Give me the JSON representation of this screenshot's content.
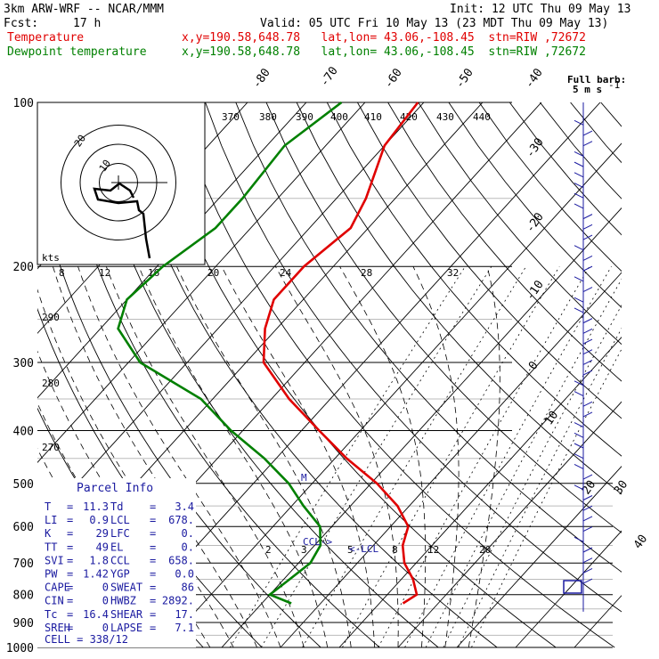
{
  "header": {
    "title": "3km ARW-WRF -- NCAR/MMM",
    "init": "Init: 12 UTC Thu 09 May 13",
    "fcst_label": "Fcst:",
    "fcst_value": "17 h",
    "valid": "Valid: 05 UTC Fri 10 May 13 (23 MDT Thu 09 May 13)",
    "temp_label": "Temperature",
    "dew_label": "Dewpoint temperature",
    "location": "x,y=190.58,648.78   lat,lon= 43.06,-108.45  stn=RIW ,72672",
    "temp_color": "#e00000",
    "dew_color": "#008000"
  },
  "barb_key": {
    "line1": "Full barb:",
    "line2": "5 m s",
    "sup": "-1"
  },
  "hodograph": {
    "units": "kts",
    "ring_labels": [
      "20",
      "10"
    ]
  },
  "parcel_info": {
    "title": "Parcel Info",
    "rows": [
      [
        "T",
        "=",
        "11.3",
        "Td",
        "=",
        "3.4"
      ],
      [
        "LI",
        "=",
        "0.9",
        "LCL",
        "=",
        "678."
      ],
      [
        "K",
        "=",
        "29",
        "LFC",
        "=",
        "0."
      ],
      [
        "TT",
        "=",
        "49",
        "EL",
        "=",
        "0."
      ],
      [
        "SVI",
        "=",
        "1.8",
        "CCL",
        "=",
        "658."
      ],
      [
        "PW",
        "=",
        "1.42",
        "YGP",
        "=",
        "0.0"
      ],
      [
        "CAPE",
        "=",
        "0",
        "SWEAT",
        "=",
        "86"
      ],
      [
        "CIN",
        "=",
        "0",
        "HWBZ",
        "=",
        "2892."
      ],
      [
        "Tc",
        "=",
        "16.4",
        "SHEAR",
        "=",
        "17."
      ],
      [
        "SREH",
        "=",
        "0",
        "LAPSE",
        "=",
        "7.1"
      ]
    ],
    "cell": "CELL = 338/12"
  },
  "annotations": {
    "ccl": "CCL->",
    "lcl": "<-LCL"
  },
  "chart_data": {
    "type": "skew-t",
    "y_axis": "pressure (hPa)",
    "pressure_labels": [
      "100",
      "200",
      "300",
      "400",
      "500",
      "600",
      "700",
      "800",
      "900",
      "1000"
    ],
    "isotherm_labels": [
      "-80",
      "-70",
      "-60",
      "-50",
      "-40",
      "-30",
      "-20",
      "-10",
      "0",
      "10",
      "20",
      "30",
      "40"
    ],
    "theta_labels": [
      "370",
      "380",
      "390",
      "400",
      "410",
      "420",
      "430",
      "440",
      "290",
      "280",
      "270"
    ],
    "mixing_ratio_labels_upper": [
      "8",
      "12",
      "16",
      "20",
      "24",
      "28",
      "32"
    ],
    "mixing_ratio_labels_lower": [
      "2",
      "3",
      "5",
      "8",
      "12",
      "20"
    ],
    "temperature": {
      "name": "Temperature",
      "pressure": [
        100,
        120,
        150,
        170,
        200,
        230,
        260,
        300,
        350,
        400,
        450,
        500,
        550,
        600,
        650,
        700,
        750,
        800,
        830
      ],
      "values": [
        -61,
        -60,
        -55,
        -53,
        -55,
        -55,
        -52,
        -47,
        -37,
        -27,
        -18,
        -9,
        -2,
        3,
        5,
        8,
        12,
        15,
        14
      ]
    },
    "dewpoint": {
      "name": "Dewpoint temperature",
      "pressure": [
        100,
        120,
        150,
        170,
        200,
        230,
        260,
        300,
        350,
        400,
        450,
        500,
        550,
        600,
        650,
        700,
        750,
        800,
        830
      ],
      "values": [
        -74,
        -77,
        -76,
        -76,
        -79,
        -80,
        -77,
        -68,
        -52,
        -42,
        -32,
        -24,
        -18,
        -12,
        -9,
        -8,
        -9,
        -10,
        -5
      ]
    },
    "wind_barbs": {
      "pressure": [
        100,
        150,
        200,
        250,
        300,
        400,
        500,
        600,
        700,
        800
      ],
      "direction_deg": [
        270,
        270,
        270,
        270,
        270,
        250,
        240,
        230,
        220,
        210
      ],
      "speed_kt": [
        20,
        25,
        30,
        30,
        30,
        20,
        15,
        10,
        10,
        25
      ]
    },
    "hodograph_rings_kt": [
      10,
      20,
      30
    ]
  }
}
